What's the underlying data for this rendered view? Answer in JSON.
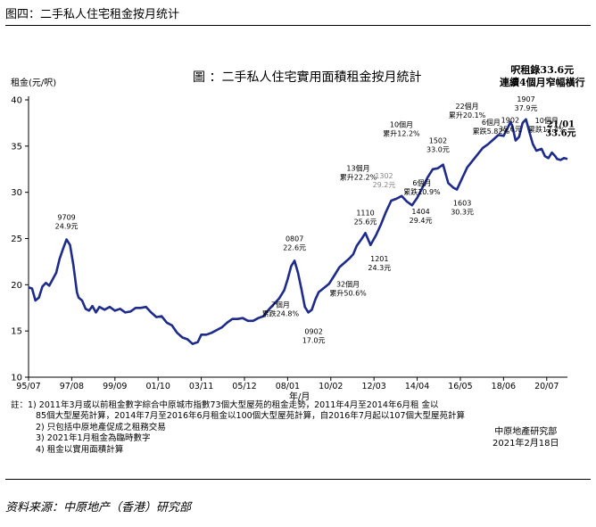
{
  "header": "图四：二手私人住宅租金按月统计",
  "source": "资料来源：中原地产（香港）研究部",
  "chart_data": {
    "type": "line",
    "title": "圖 ：二手私人住宅實用面積租金按月統計",
    "ylabel": "租金(元/呎)",
    "xlabel": "年/月",
    "ylim": [
      10,
      40
    ],
    "yticks": [
      10,
      15,
      20,
      25,
      30,
      35,
      40
    ],
    "xlim": [
      "1995-07",
      "2021-07"
    ],
    "xticks": [
      "95/07",
      "97/08",
      "99/09",
      "01/10",
      "03/11",
      "05/12",
      "08/01",
      "10/02",
      "12/03",
      "14/04",
      "16/05",
      "18/06",
      "20/07"
    ],
    "grid": false,
    "callout": [
      "呎租錄33.6元",
      "連續4個月窄幅橫行"
    ],
    "series": [
      {
        "color": "#1c2b8c",
        "points": [
          [
            "1995-07",
            19.7
          ],
          [
            "1995-09",
            19.6
          ],
          [
            "1995-11",
            18.3
          ],
          [
            "1996-01",
            18.6
          ],
          [
            "1996-03",
            19.8
          ],
          [
            "1996-05",
            20.2
          ],
          [
            "1996-07",
            19.9
          ],
          [
            "1996-09",
            20.6
          ],
          [
            "1996-11",
            21.3
          ],
          [
            "1997-01",
            22.8
          ],
          [
            "1997-03",
            23.9
          ],
          [
            "1997-05",
            24.9
          ],
          [
            "1997-07",
            24.3
          ],
          [
            "1997-08",
            23.2
          ],
          [
            "1997-09",
            22.1
          ],
          [
            "1997-10",
            20.6
          ],
          [
            "1997-11",
            19.2
          ],
          [
            "1997-12",
            18.6
          ],
          [
            "1998-02",
            18.3
          ],
          [
            "1998-04",
            17.4
          ],
          [
            "1998-06",
            17.2
          ],
          [
            "1998-08",
            17.7
          ],
          [
            "1998-10",
            17.0
          ],
          [
            "1998-12",
            17.6
          ],
          [
            "1999-03",
            17.3
          ],
          [
            "1999-06",
            17.6
          ],
          [
            "1999-09",
            17.2
          ],
          [
            "1999-12",
            17.4
          ],
          [
            "2000-03",
            17.0
          ],
          [
            "2000-06",
            17.1
          ],
          [
            "2000-09",
            17.5
          ],
          [
            "2000-12",
            17.5
          ],
          [
            "2001-03",
            17.6
          ],
          [
            "2001-06",
            17.0
          ],
          [
            "2001-09",
            16.5
          ],
          [
            "2001-12",
            16.6
          ],
          [
            "2002-03",
            15.9
          ],
          [
            "2002-06",
            15.6
          ],
          [
            "2002-09",
            14.8
          ],
          [
            "2002-12",
            14.3
          ],
          [
            "2003-03",
            14.1
          ],
          [
            "2003-06",
            13.6
          ],
          [
            "2003-09",
            13.8
          ],
          [
            "2003-11",
            14.6
          ],
          [
            "2004-02",
            14.6
          ],
          [
            "2004-05",
            14.8
          ],
          [
            "2004-08",
            15.1
          ],
          [
            "2004-11",
            15.4
          ],
          [
            "2005-02",
            15.9
          ],
          [
            "2005-05",
            16.3
          ],
          [
            "2005-08",
            16.3
          ],
          [
            "2005-11",
            16.4
          ],
          [
            "2006-02",
            16.1
          ],
          [
            "2006-05",
            16.1
          ],
          [
            "2006-08",
            16.4
          ],
          [
            "2006-11",
            16.6
          ],
          [
            "2007-02",
            17.3
          ],
          [
            "2007-05",
            17.9
          ],
          [
            "2007-08",
            18.5
          ],
          [
            "2007-11",
            19.4
          ],
          [
            "2008-01",
            20.6
          ],
          [
            "2008-03",
            22.0
          ],
          [
            "2008-05",
            22.6
          ],
          [
            "2008-07",
            21.3
          ],
          [
            "2008-09",
            19.5
          ],
          [
            "2008-11",
            17.6
          ],
          [
            "2009-01",
            17.0
          ],
          [
            "2009-03",
            17.3
          ],
          [
            "2009-05",
            18.4
          ],
          [
            "2009-07",
            19.2
          ],
          [
            "2009-09",
            19.5
          ],
          [
            "2009-11",
            19.8
          ],
          [
            "2010-01",
            20.1
          ],
          [
            "2010-04",
            21.0
          ],
          [
            "2010-07",
            21.9
          ],
          [
            "2010-10",
            22.4
          ],
          [
            "2011-01",
            22.9
          ],
          [
            "2011-03",
            23.3
          ],
          [
            "2011-05",
            24.2
          ],
          [
            "2011-08",
            25.0
          ],
          [
            "2011-10",
            25.6
          ],
          [
            "2012-01",
            24.3
          ],
          [
            "2012-04",
            25.3
          ],
          [
            "2012-07",
            26.5
          ],
          [
            "2012-10",
            27.9
          ],
          [
            "2013-01",
            29.1
          ],
          [
            "2013-04",
            29.3
          ],
          [
            "2013-07",
            29.6
          ],
          [
            "2013-10",
            29.0
          ],
          [
            "2014-01",
            28.6
          ],
          [
            "2014-04",
            29.4
          ],
          [
            "2014-07",
            30.5
          ],
          [
            "2014-10",
            31.6
          ],
          [
            "2015-01",
            32.5
          ],
          [
            "2015-04",
            32.6
          ],
          [
            "2015-07",
            33.0
          ],
          [
            "2015-10",
            31.0
          ],
          [
            "2016-01",
            30.5
          ],
          [
            "2016-03",
            30.3
          ],
          [
            "2016-06",
            31.5
          ],
          [
            "2016-09",
            32.7
          ],
          [
            "2016-12",
            33.4
          ],
          [
            "2017-03",
            34.1
          ],
          [
            "2017-06",
            34.8
          ],
          [
            "2017-09",
            35.2
          ],
          [
            "2017-12",
            35.7
          ],
          [
            "2018-03",
            36.2
          ],
          [
            "2018-06",
            36.1
          ],
          [
            "2018-08",
            36.8
          ],
          [
            "2018-10",
            37.6
          ],
          [
            "2018-11",
            37.2
          ],
          [
            "2019-01",
            35.6
          ],
          [
            "2019-03",
            36.0
          ],
          [
            "2019-05",
            37.5
          ],
          [
            "2019-07",
            37.9
          ],
          [
            "2019-09",
            36.5
          ],
          [
            "2019-11",
            35.2
          ],
          [
            "2020-01",
            34.5
          ],
          [
            "2020-04",
            34.7
          ],
          [
            "2020-06",
            33.9
          ],
          [
            "2020-08",
            33.7
          ],
          [
            "2020-10",
            34.3
          ],
          [
            "2020-12",
            33.9
          ],
          [
            "2021-01",
            33.6
          ],
          [
            "2021-03",
            33.5
          ],
          [
            "2021-05",
            33.7
          ],
          [
            "2021-07",
            33.6
          ]
        ]
      }
    ],
    "annotations": [
      {
        "x": "1997-05",
        "y": 24.9,
        "text": [
          "9709",
          "24.9元"
        ],
        "color": "#000"
      },
      {
        "x": "2008-05",
        "y": 22.6,
        "text": [
          "0807",
          "22.6元"
        ],
        "color": "#000"
      },
      {
        "x": "2008-01",
        "y": 19.5,
        "text": [
          "7個月",
          "累跌24.8%"
        ],
        "color": "#000"
      },
      {
        "x": "2009-01",
        "y": 17.0,
        "text": [
          "0902",
          "17.0元"
        ],
        "color": "#000"
      },
      {
        "x": "2011-10",
        "y": 25.6,
        "text": [
          "1110",
          "25.6元"
        ],
        "color": "#000"
      },
      {
        "x": "2011-10",
        "y": 27.9,
        "text": [
          "13個月",
          "累升22.2%"
        ],
        "color": "#000"
      },
      {
        "x": "2011-01",
        "y": 22.5,
        "text": [
          "32個月",
          "累升50.6%"
        ],
        "color": "#000"
      },
      {
        "x": "2012-01",
        "y": 24.3,
        "text": [
          "1201",
          "24.3元"
        ],
        "color": "#000"
      },
      {
        "x": "2013-02",
        "y": 29.2,
        "text": [
          "1302",
          "29.2元"
        ],
        "color": "#888888"
      },
      {
        "x": "2014-04",
        "y": 29.4,
        "text": [
          "1404",
          "29.4元"
        ],
        "color": "#000"
      },
      {
        "x": "2013-10",
        "y": 32.6,
        "text": [
          "10個月",
          "累升12.2%"
        ],
        "color": "#000"
      },
      {
        "x": "2015-02",
        "y": 31.3,
        "text": [
          "6個月",
          "累跌10.9%"
        ],
        "color": "#000"
      },
      {
        "x": "2015-02",
        "y": 33.0,
        "text": [
          "1502",
          "33.0元"
        ],
        "color": "#000"
      },
      {
        "x": "2016-03",
        "y": 30.3,
        "text": [
          "1603",
          "30.3元"
        ],
        "color": "#000"
      },
      {
        "x": "2016-11",
        "y": 35.2,
        "text": [
          "22個月",
          "累升20.1%"
        ],
        "color": "#000"
      },
      {
        "x": "2018-06",
        "y": 37.9,
        "text": [
          "6個月",
          "累跌5.82%"
        ],
        "color": "#000"
      },
      {
        "x": "2019-02",
        "y": 35.6,
        "text": [
          "1902",
          "35.6元"
        ],
        "color": "#000"
      },
      {
        "x": "2019-07",
        "y": 37.9,
        "text": [
          "1907",
          "37.9元"
        ],
        "color": "#000"
      },
      {
        "x": "2020-07",
        "y": 34.8,
        "text": [
          "10個月",
          "累跌12.4%"
        ],
        "color": "#000"
      },
      {
        "x": "2021-01",
        "y": 33.6,
        "text": [
          "21/01",
          "33.6元"
        ],
        "color": "#000",
        "bold": true
      }
    ]
  },
  "notes": [
    "註：1) 2011年3月或以前租金數字綜合中原城市指數73個大型屋苑的租金走勢，2011年4月至2014年6月租 金以",
    "85個大型屋苑計算，2014年7月至2016年6月租金以100個大型屋苑計算，自2016年7月起以107個大型屋苑計算",
    "2) 只包括中原地產促成之租務交易",
    "3) 2021年1月租金為臨時數字",
    "4) 租金以實用面積計算"
  ],
  "credit": [
    "中原地產研究部",
    "2021年2月18日"
  ]
}
